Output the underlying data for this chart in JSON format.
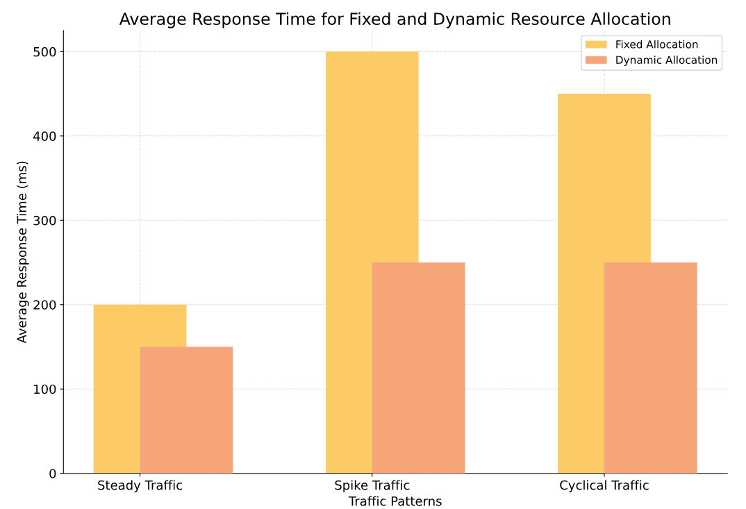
{
  "chart_data": {
    "type": "bar",
    "title": "Average Response Time for Fixed and Dynamic Resource Allocation",
    "xlabel": "Traffic Patterns",
    "ylabel": "Average Response Time (ms)",
    "categories": [
      "Steady Traffic",
      "Spike Traffic",
      "Cyclical Traffic"
    ],
    "series": [
      {
        "name": "Fixed Allocation",
        "color": "#fccb66",
        "values": [
          200,
          500,
          450
        ]
      },
      {
        "name": "Dynamic Allocation",
        "color": "#f5a577",
        "values": [
          150,
          250,
          250
        ]
      }
    ],
    "ylim": [
      0,
      525
    ],
    "yticks": [
      0,
      100,
      200,
      300,
      400,
      500
    ],
    "grid": true,
    "legend": "top right"
  }
}
